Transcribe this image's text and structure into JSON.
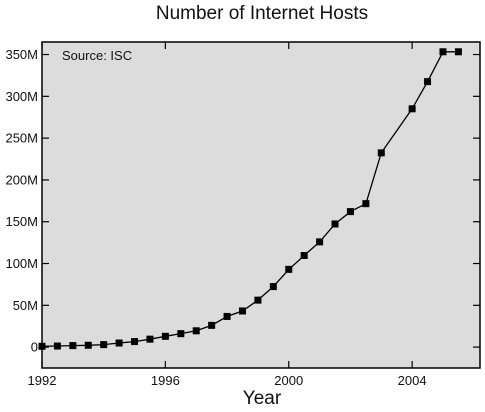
{
  "chart_data": {
    "type": "line",
    "title": "Number of Internet Hosts",
    "xlabel": "Year",
    "ylabel": "",
    "annotation": "Source: ISC",
    "xlim": [
      1992,
      2006.2
    ],
    "ylim": [
      -25,
      365
    ],
    "x_ticks": [
      1992,
      1996,
      2000,
      2004
    ],
    "x_tick_labels": [
      "1992",
      "1996",
      "2000",
      "2004"
    ],
    "y_ticks": [
      0,
      50,
      100,
      150,
      200,
      250,
      300,
      350
    ],
    "y_tick_labels": [
      "0",
      "50M",
      "100M",
      "150M",
      "200M",
      "250M",
      "300M",
      "350M"
    ],
    "grid": false,
    "plot_background": "#dcdcdc",
    "line_color": "#000000",
    "marker": "square",
    "series": [
      {
        "x": [
          1992.0,
          1992.5,
          1993.0,
          1993.5,
          1994.0,
          1994.5,
          1995.0,
          1995.5,
          1996.0,
          1996.5,
          1997.0,
          1997.5,
          1998.0,
          1998.5,
          1999.0,
          1999.5,
          2000.0,
          2000.5,
          2001.0,
          2001.5,
          2002.0,
          2002.5,
          2003.0,
          2004.0,
          2004.5,
          2005.0,
          2005.5
        ],
        "y": [
          1,
          1.3,
          1.8,
          2.2,
          3,
          4.9,
          6.6,
          9.5,
          12.9,
          16.1,
          19.5,
          26,
          36.7,
          43.2,
          56.2,
          72.4,
          93,
          109.6,
          125.9,
          147.3,
          162.1,
          171.6,
          232.4,
          285.1,
          317.6,
          353.3,
          353.3
        ]
      }
    ]
  }
}
